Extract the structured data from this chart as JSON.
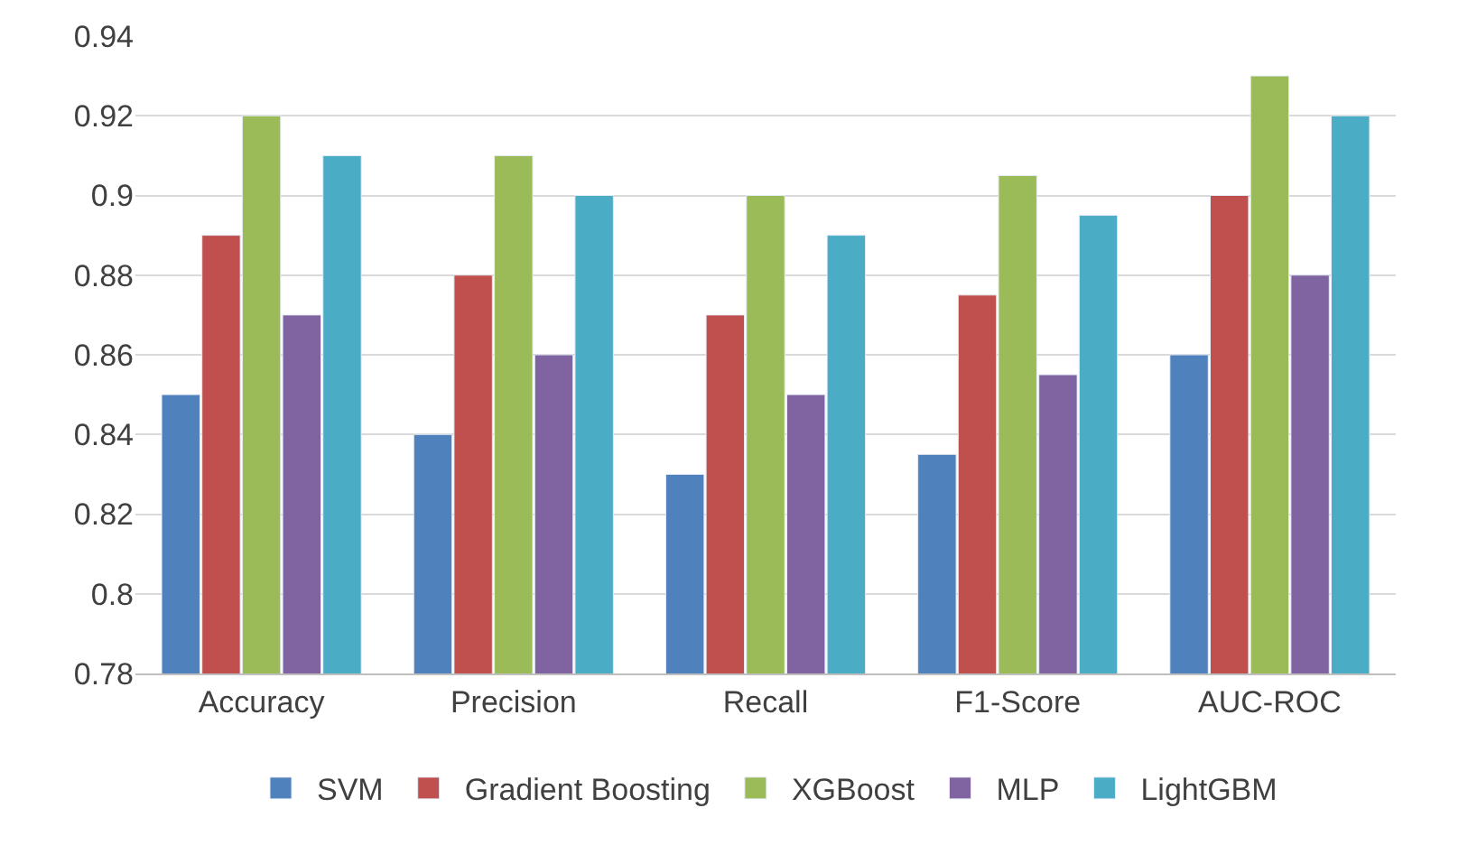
{
  "chart_data": {
    "type": "bar",
    "categories": [
      "Accuracy",
      "Precision",
      "Recall",
      "F1-Score",
      "AUC-ROC"
    ],
    "series": [
      {
        "name": "SVM",
        "color": "#4f81bd",
        "values": [
          0.85,
          0.84,
          0.83,
          0.835,
          0.86
        ]
      },
      {
        "name": "Gradient Boosting",
        "color": "#c0504d",
        "values": [
          0.89,
          0.88,
          0.87,
          0.875,
          0.9
        ]
      },
      {
        "name": "XGBoost",
        "color": "#9bbb59",
        "values": [
          0.92,
          0.91,
          0.9,
          0.905,
          0.93
        ]
      },
      {
        "name": "MLP",
        "color": "#8064a2",
        "values": [
          0.87,
          0.86,
          0.85,
          0.855,
          0.88
        ]
      },
      {
        "name": "LightGBM",
        "color": "#4bacc6",
        "values": [
          0.91,
          0.9,
          0.89,
          0.895,
          0.92
        ]
      }
    ],
    "ylim": [
      0.78,
      0.94
    ],
    "yticks": [
      0.78,
      0.8,
      0.82,
      0.84,
      0.86,
      0.88,
      0.9,
      0.92,
      0.94
    ],
    "grid": "y",
    "legend": "bottom"
  }
}
